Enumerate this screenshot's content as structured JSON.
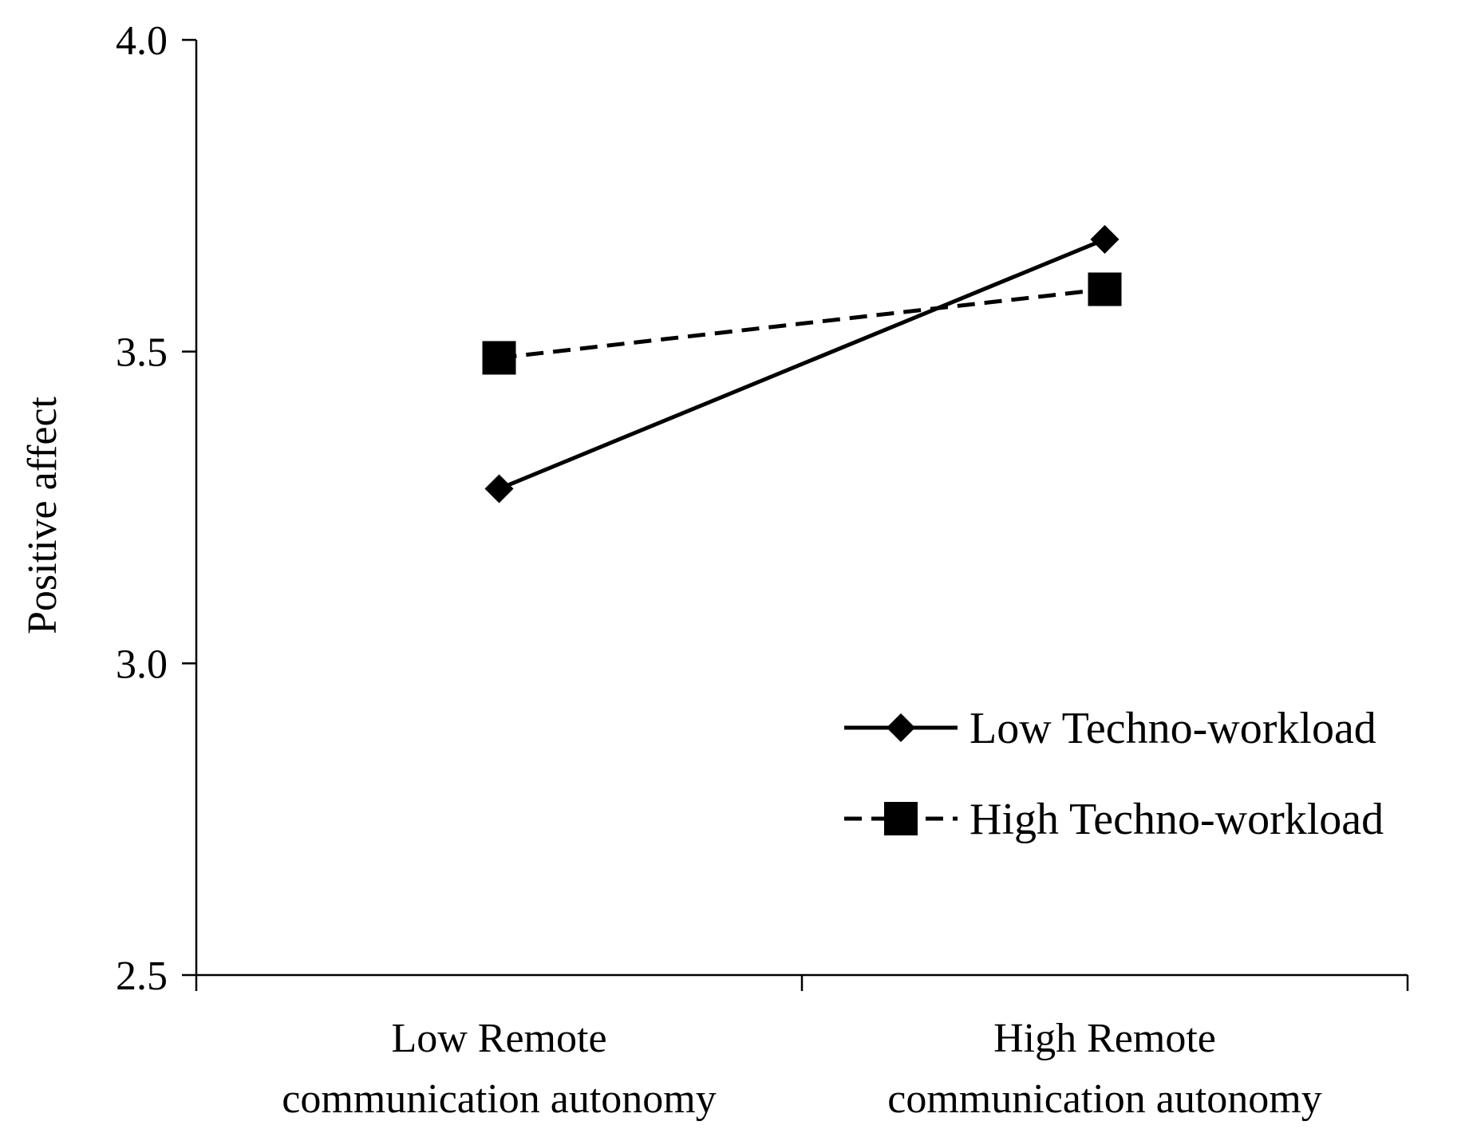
{
  "chart_data": {
    "type": "line",
    "title": "",
    "xlabel": "",
    "ylabel": "Positive affect",
    "categories": [
      [
        "Low Remote",
        "communication autonomy"
      ],
      [
        "High Remote",
        "communication autonomy"
      ]
    ],
    "y_ticks": [
      "2.5",
      "3.0",
      "3.5",
      "4.0"
    ],
    "ylim": [
      2.5,
      4.0
    ],
    "grid": false,
    "legend_position": "right",
    "series": [
      {
        "name": "Low Techno-workload",
        "values": [
          3.28,
          3.68
        ],
        "marker": "diamond",
        "line_style": "solid",
        "color": "#000000"
      },
      {
        "name": "High Techno-workload",
        "values": [
          3.49,
          3.6
        ],
        "marker": "square",
        "line_style": "dashed",
        "color": "#000000"
      }
    ]
  }
}
